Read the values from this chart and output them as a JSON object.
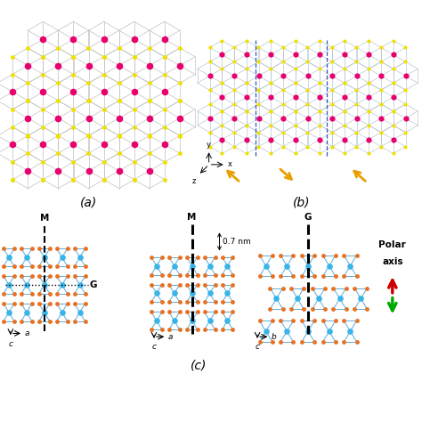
{
  "bg_color": "#ffffff",
  "Mo_color": "#e8006e",
  "S_color": "#f0e000",
  "Mo_color_c": "#3ab4e8",
  "S_color_c": "#e87020",
  "bond_color_a": "#c0c0c0",
  "bond_color_b": "#5aaddd",
  "label_a": "(a)",
  "label_b": "(b)",
  "label_c": "(c)",
  "polar_label_1": "Polar",
  "polar_label_2": "axis",
  "arrow_up_color": "#cc0000",
  "arrow_down_color": "#00aa00"
}
